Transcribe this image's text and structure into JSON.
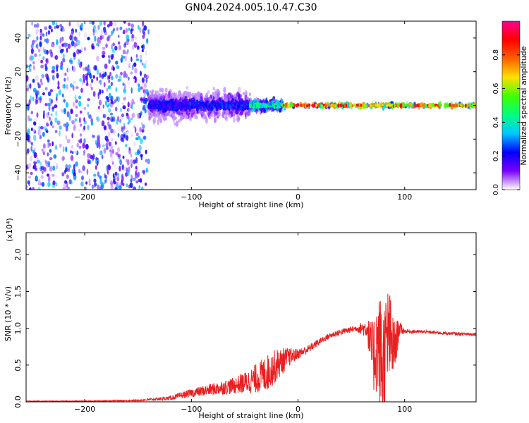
{
  "title": "GN04.2024.005.10.47.C30",
  "chart_data": [
    {
      "type": "heatmap",
      "title": "GN04.2024.005.10.47.C30",
      "xlabel": "Height of straight line (km)",
      "ylabel": "Frequency (Hz)",
      "xlim": [
        -255,
        167
      ],
      "ylim": [
        -50,
        50
      ],
      "xticks": [
        -200,
        -100,
        0,
        100
      ],
      "yticks": [
        -40,
        -20,
        0,
        20,
        40
      ],
      "colorbar": {
        "label": "Normalized spectral amplitude",
        "range": [
          0.0,
          1.0
        ],
        "ticks": [
          "0.0",
          "0.2",
          "0.4",
          "0.6",
          "0.8"
        ],
        "colormap": [
          "#ffffff",
          "#7a00ff",
          "#0000ff",
          "#00c8ff",
          "#00ff80",
          "#40ff00",
          "#ffe000",
          "#ff6000",
          "#ff0000",
          "#ff0090"
        ]
      },
      "regions": [
        {
          "x": [
            -255,
            -140
          ],
          "spread_hz": 50,
          "amplitude": 0.12
        },
        {
          "x": [
            -140,
            -100
          ],
          "spread_hz": 8,
          "amplitude": 0.25
        },
        {
          "x": [
            -100,
            -45
          ],
          "spread_hz": 7,
          "amplitude": 0.28
        },
        {
          "x": [
            -45,
            -15
          ],
          "spread_hz": 3,
          "amplitude": 0.5
        },
        {
          "x": [
            -15,
            167
          ],
          "spread_hz": 1,
          "amplitude": 0.95
        }
      ]
    },
    {
      "type": "line",
      "xlabel": "Height of straight line (km)",
      "ylabel": "SNR (10 * v/v)",
      "y_scale_label": "(x10⁴)",
      "xlim": [
        -255,
        167
      ],
      "ylim": [
        0,
        2.3
      ],
      "xticks": [
        -200,
        -100,
        0,
        100
      ],
      "yticks": [
        "0.0",
        "0.5",
        "1.0",
        "1.5",
        "2.0"
      ],
      "series": [
        {
          "color": "#e82020",
          "x": [
            -255,
            -200,
            -150,
            -120,
            -100,
            -80,
            -60,
            -45,
            -30,
            -20,
            -10,
            0,
            10,
            20,
            30,
            40,
            55,
            65,
            70,
            75,
            80,
            85,
            90,
            95,
            100,
            120,
            140,
            160,
            167
          ],
          "y": [
            0.01,
            0.01,
            0.02,
            0.05,
            0.12,
            0.17,
            0.22,
            0.28,
            0.38,
            0.5,
            0.6,
            0.65,
            0.72,
            0.82,
            0.9,
            0.95,
            1.0,
            1.0,
            0.6,
            0.8,
            0.45,
            0.9,
            0.7,
            1.0,
            0.96,
            0.95,
            0.93,
            0.92,
            0.92
          ],
          "noise": [
            0.003,
            0.004,
            0.006,
            0.02,
            0.04,
            0.06,
            0.08,
            0.12,
            0.18,
            0.16,
            0.1,
            0.05,
            0.04,
            0.03,
            0.03,
            0.03,
            0.03,
            0.1,
            0.35,
            0.5,
            0.7,
            0.5,
            0.3,
            0.08,
            0.02,
            0.015,
            0.015,
            0.015,
            0.015
          ]
        }
      ]
    }
  ]
}
